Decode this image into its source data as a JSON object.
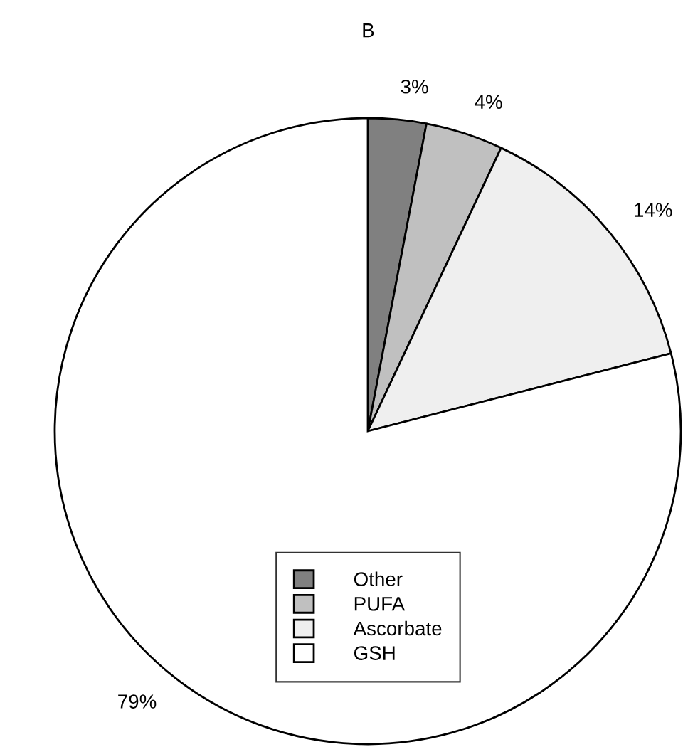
{
  "chart_data": {
    "type": "pie",
    "title": "B",
    "categories": [
      "Other",
      "PUFA",
      "Ascorbate",
      "GSH"
    ],
    "values": [
      3,
      4,
      14,
      79
    ],
    "value_labels": [
      "3%",
      "4%",
      "14%",
      "79%"
    ],
    "colors": [
      "#808080",
      "#c0c0c0",
      "#efefef",
      "#ffffff"
    ],
    "legend": "bottom"
  }
}
